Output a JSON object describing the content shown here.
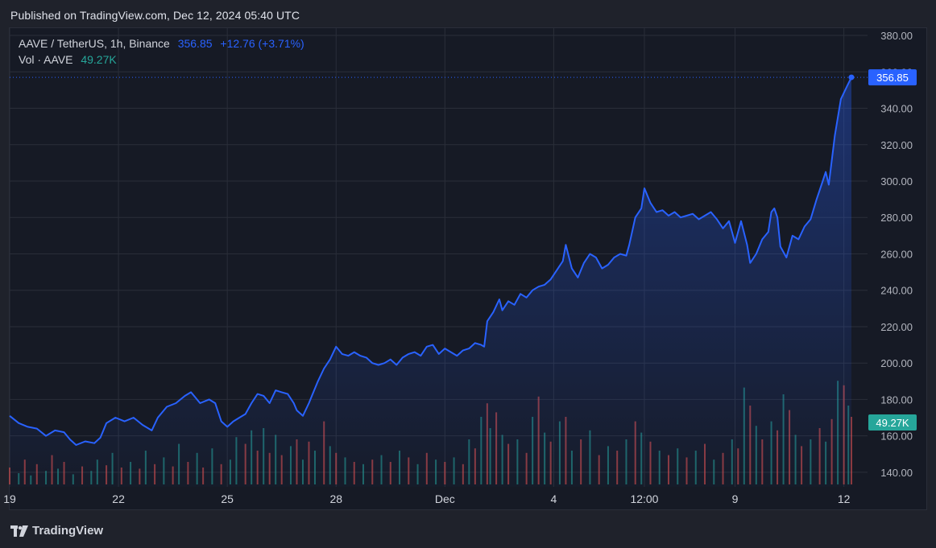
{
  "header": {
    "published": "Published on TradingView.com, Dec 12, 2024 05:40 UTC"
  },
  "legend": {
    "symbol": "AAVE / TetherUS, 1h, Binance",
    "price": "356.85",
    "change": "+12.76 (+3.71%)",
    "vol_label": "Vol · AAVE",
    "vol_value": "49.27K"
  },
  "footer": {
    "brand": "TradingView"
  },
  "colors": {
    "line": "#2962ff",
    "vol_up": "#26a69a",
    "vol_down": "#ef5350",
    "grid": "#2a2e39",
    "price_badge": "#2962ff",
    "vol_badge": "#26a69a"
  },
  "chart_data": {
    "type": "area",
    "title": "AAVE / TetherUS, 1h, Binance",
    "y_ticks": [
      "380.00",
      "360.00",
      "340.00",
      "320.00",
      "300.00",
      "280.00",
      "260.00",
      "240.00",
      "220.00",
      "200.00",
      "180.00",
      "160.00",
      "140.00"
    ],
    "ylim": [
      132,
      384
    ],
    "x_ticks": [
      {
        "label": "19",
        "x": 0
      },
      {
        "label": "22",
        "x": 72
      },
      {
        "label": "25",
        "x": 144
      },
      {
        "label": "28",
        "x": 216
      },
      {
        "label": "Dec",
        "x": 288
      },
      {
        "label": "4",
        "x": 360
      },
      {
        "label": "12:00",
        "x": 420
      },
      {
        "label": "9",
        "x": 480
      },
      {
        "label": "12",
        "x": 552
      }
    ],
    "xlim": [
      0,
      557
    ],
    "price_points": [
      [
        0,
        171
      ],
      [
        6,
        167
      ],
      [
        12,
        165
      ],
      [
        18,
        164
      ],
      [
        24,
        160
      ],
      [
        30,
        163
      ],
      [
        36,
        162
      ],
      [
        40,
        158
      ],
      [
        44,
        155
      ],
      [
        50,
        157
      ],
      [
        56,
        156
      ],
      [
        60,
        159
      ],
      [
        64,
        167
      ],
      [
        70,
        170
      ],
      [
        76,
        168
      ],
      [
        82,
        170
      ],
      [
        88,
        166
      ],
      [
        94,
        163
      ],
      [
        98,
        170
      ],
      [
        104,
        176
      ],
      [
        110,
        178
      ],
      [
        116,
        182
      ],
      [
        120,
        184
      ],
      [
        126,
        178
      ],
      [
        132,
        180
      ],
      [
        136,
        178
      ],
      [
        140,
        168
      ],
      [
        144,
        165
      ],
      [
        148,
        168
      ],
      [
        152,
        170
      ],
      [
        156,
        172
      ],
      [
        160,
        178
      ],
      [
        164,
        183
      ],
      [
        168,
        182
      ],
      [
        172,
        178
      ],
      [
        176,
        185
      ],
      [
        180,
        184
      ],
      [
        184,
        183
      ],
      [
        188,
        178
      ],
      [
        190,
        174
      ],
      [
        194,
        171
      ],
      [
        198,
        178
      ],
      [
        200,
        182
      ],
      [
        204,
        190
      ],
      [
        208,
        197
      ],
      [
        212,
        202
      ],
      [
        216,
        209
      ],
      [
        220,
        205
      ],
      [
        224,
        204
      ],
      [
        228,
        206
      ],
      [
        232,
        204
      ],
      [
        236,
        203
      ],
      [
        240,
        200
      ],
      [
        244,
        199
      ],
      [
        248,
        200
      ],
      [
        252,
        202
      ],
      [
        256,
        199
      ],
      [
        260,
        203
      ],
      [
        264,
        205
      ],
      [
        268,
        206
      ],
      [
        272,
        204
      ],
      [
        276,
        209
      ],
      [
        280,
        210
      ],
      [
        284,
        205
      ],
      [
        288,
        208
      ],
      [
        292,
        206
      ],
      [
        296,
        204
      ],
      [
        300,
        207
      ],
      [
        304,
        208
      ],
      [
        308,
        211
      ],
      [
        312,
        210
      ],
      [
        314,
        209
      ],
      [
        316,
        223
      ],
      [
        320,
        228
      ],
      [
        324,
        235
      ],
      [
        326,
        229
      ],
      [
        330,
        234
      ],
      [
        334,
        232
      ],
      [
        338,
        238
      ],
      [
        342,
        236
      ],
      [
        346,
        240
      ],
      [
        350,
        242
      ],
      [
        354,
        243
      ],
      [
        358,
        246
      ],
      [
        362,
        251
      ],
      [
        366,
        256
      ],
      [
        368,
        265
      ],
      [
        372,
        252
      ],
      [
        376,
        247
      ],
      [
        380,
        255
      ],
      [
        384,
        260
      ],
      [
        388,
        258
      ],
      [
        392,
        252
      ],
      [
        396,
        254
      ],
      [
        400,
        258
      ],
      [
        404,
        260
      ],
      [
        408,
        259
      ],
      [
        410,
        265
      ],
      [
        414,
        280
      ],
      [
        418,
        285
      ],
      [
        420,
        296
      ],
      [
        424,
        288
      ],
      [
        428,
        283
      ],
      [
        432,
        284
      ],
      [
        436,
        281
      ],
      [
        440,
        283
      ],
      [
        444,
        280
      ],
      [
        448,
        281
      ],
      [
        452,
        282
      ],
      [
        456,
        279
      ],
      [
        460,
        281
      ],
      [
        464,
        283
      ],
      [
        468,
        279
      ],
      [
        472,
        274
      ],
      [
        476,
        278
      ],
      [
        478,
        272
      ],
      [
        480,
        266
      ],
      [
        484,
        278
      ],
      [
        488,
        265
      ],
      [
        490,
        255
      ],
      [
        494,
        260
      ],
      [
        498,
        268
      ],
      [
        502,
        272
      ],
      [
        504,
        283
      ],
      [
        506,
        285
      ],
      [
        508,
        280
      ],
      [
        510,
        264
      ],
      [
        514,
        258
      ],
      [
        518,
        270
      ],
      [
        522,
        268
      ],
      [
        526,
        275
      ],
      [
        530,
        279
      ],
      [
        534,
        290
      ],
      [
        538,
        300
      ],
      [
        540,
        305
      ],
      [
        542,
        298
      ],
      [
        546,
        325
      ],
      [
        550,
        345
      ],
      [
        554,
        352
      ],
      [
        557,
        357
      ]
    ],
    "volume_max": 100,
    "volume_seed_note": "Hourly volume bars at bottom (relative heights 0-100)",
    "volume_bars": [
      [
        0,
        15,
        0
      ],
      [
        6,
        10,
        1
      ],
      [
        10,
        22,
        0
      ],
      [
        14,
        8,
        1
      ],
      [
        18,
        18,
        0
      ],
      [
        24,
        12,
        1
      ],
      [
        28,
        26,
        0
      ],
      [
        32,
        14,
        1
      ],
      [
        36,
        20,
        0
      ],
      [
        42,
        9,
        1
      ],
      [
        48,
        16,
        0
      ],
      [
        54,
        12,
        1
      ],
      [
        58,
        22,
        1
      ],
      [
        64,
        17,
        0
      ],
      [
        68,
        28,
        1
      ],
      [
        74,
        15,
        0
      ],
      [
        80,
        20,
        1
      ],
      [
        86,
        14,
        0
      ],
      [
        90,
        30,
        1
      ],
      [
        96,
        18,
        0
      ],
      [
        102,
        24,
        1
      ],
      [
        108,
        16,
        0
      ],
      [
        112,
        36,
        1
      ],
      [
        118,
        20,
        0
      ],
      [
        124,
        28,
        1
      ],
      [
        128,
        15,
        0
      ],
      [
        134,
        32,
        1
      ],
      [
        140,
        18,
        0
      ],
      [
        146,
        22,
        1
      ],
      [
        150,
        42,
        1
      ],
      [
        156,
        36,
        0
      ],
      [
        160,
        48,
        1
      ],
      [
        164,
        30,
        0
      ],
      [
        168,
        50,
        1
      ],
      [
        172,
        28,
        0
      ],
      [
        176,
        44,
        1
      ],
      [
        180,
        26,
        0
      ],
      [
        186,
        34,
        1
      ],
      [
        190,
        40,
        0
      ],
      [
        194,
        22,
        1
      ],
      [
        198,
        38,
        0
      ],
      [
        202,
        30,
        1
      ],
      [
        208,
        56,
        0
      ],
      [
        212,
        34,
        1
      ],
      [
        216,
        28,
        0
      ],
      [
        222,
        24,
        1
      ],
      [
        228,
        20,
        0
      ],
      [
        234,
        18,
        1
      ],
      [
        240,
        22,
        0
      ],
      [
        246,
        26,
        1
      ],
      [
        252,
        20,
        0
      ],
      [
        258,
        30,
        1
      ],
      [
        264,
        24,
        0
      ],
      [
        270,
        18,
        1
      ],
      [
        276,
        28,
        0
      ],
      [
        282,
        22,
        1
      ],
      [
        288,
        20,
        0
      ],
      [
        294,
        24,
        1
      ],
      [
        300,
        18,
        0
      ],
      [
        304,
        40,
        1
      ],
      [
        308,
        32,
        0
      ],
      [
        312,
        60,
        1
      ],
      [
        316,
        72,
        0
      ],
      [
        318,
        50,
        1
      ],
      [
        322,
        64,
        0
      ],
      [
        326,
        44,
        1
      ],
      [
        330,
        36,
        0
      ],
      [
        336,
        40,
        1
      ],
      [
        342,
        28,
        0
      ],
      [
        346,
        60,
        1
      ],
      [
        350,
        78,
        0
      ],
      [
        354,
        46,
        1
      ],
      [
        358,
        38,
        0
      ],
      [
        364,
        56,
        1
      ],
      [
        368,
        60,
        0
      ],
      [
        372,
        30,
        1
      ],
      [
        378,
        40,
        0
      ],
      [
        384,
        48,
        1
      ],
      [
        390,
        26,
        0
      ],
      [
        396,
        34,
        1
      ],
      [
        402,
        30,
        0
      ],
      [
        408,
        40,
        1
      ],
      [
        414,
        56,
        0
      ],
      [
        418,
        46,
        1
      ],
      [
        424,
        38,
        0
      ],
      [
        430,
        30,
        1
      ],
      [
        436,
        26,
        0
      ],
      [
        442,
        32,
        1
      ],
      [
        448,
        24,
        0
      ],
      [
        454,
        30,
        1
      ],
      [
        460,
        36,
        0
      ],
      [
        466,
        22,
        1
      ],
      [
        472,
        28,
        0
      ],
      [
        478,
        40,
        1
      ],
      [
        482,
        32,
        0
      ],
      [
        486,
        86,
        1
      ],
      [
        490,
        70,
        0
      ],
      [
        494,
        52,
        1
      ],
      [
        498,
        40,
        0
      ],
      [
        504,
        56,
        1
      ],
      [
        508,
        48,
        0
      ],
      [
        512,
        80,
        1
      ],
      [
        516,
        66,
        0
      ],
      [
        520,
        44,
        1
      ],
      [
        524,
        34,
        0
      ],
      [
        530,
        40,
        1
      ],
      [
        536,
        50,
        0
      ],
      [
        540,
        38,
        1
      ],
      [
        544,
        58,
        0
      ],
      [
        548,
        92,
        1
      ],
      [
        552,
        88,
        0
      ],
      [
        555,
        70,
        1
      ],
      [
        557,
        60,
        0
      ]
    ]
  }
}
